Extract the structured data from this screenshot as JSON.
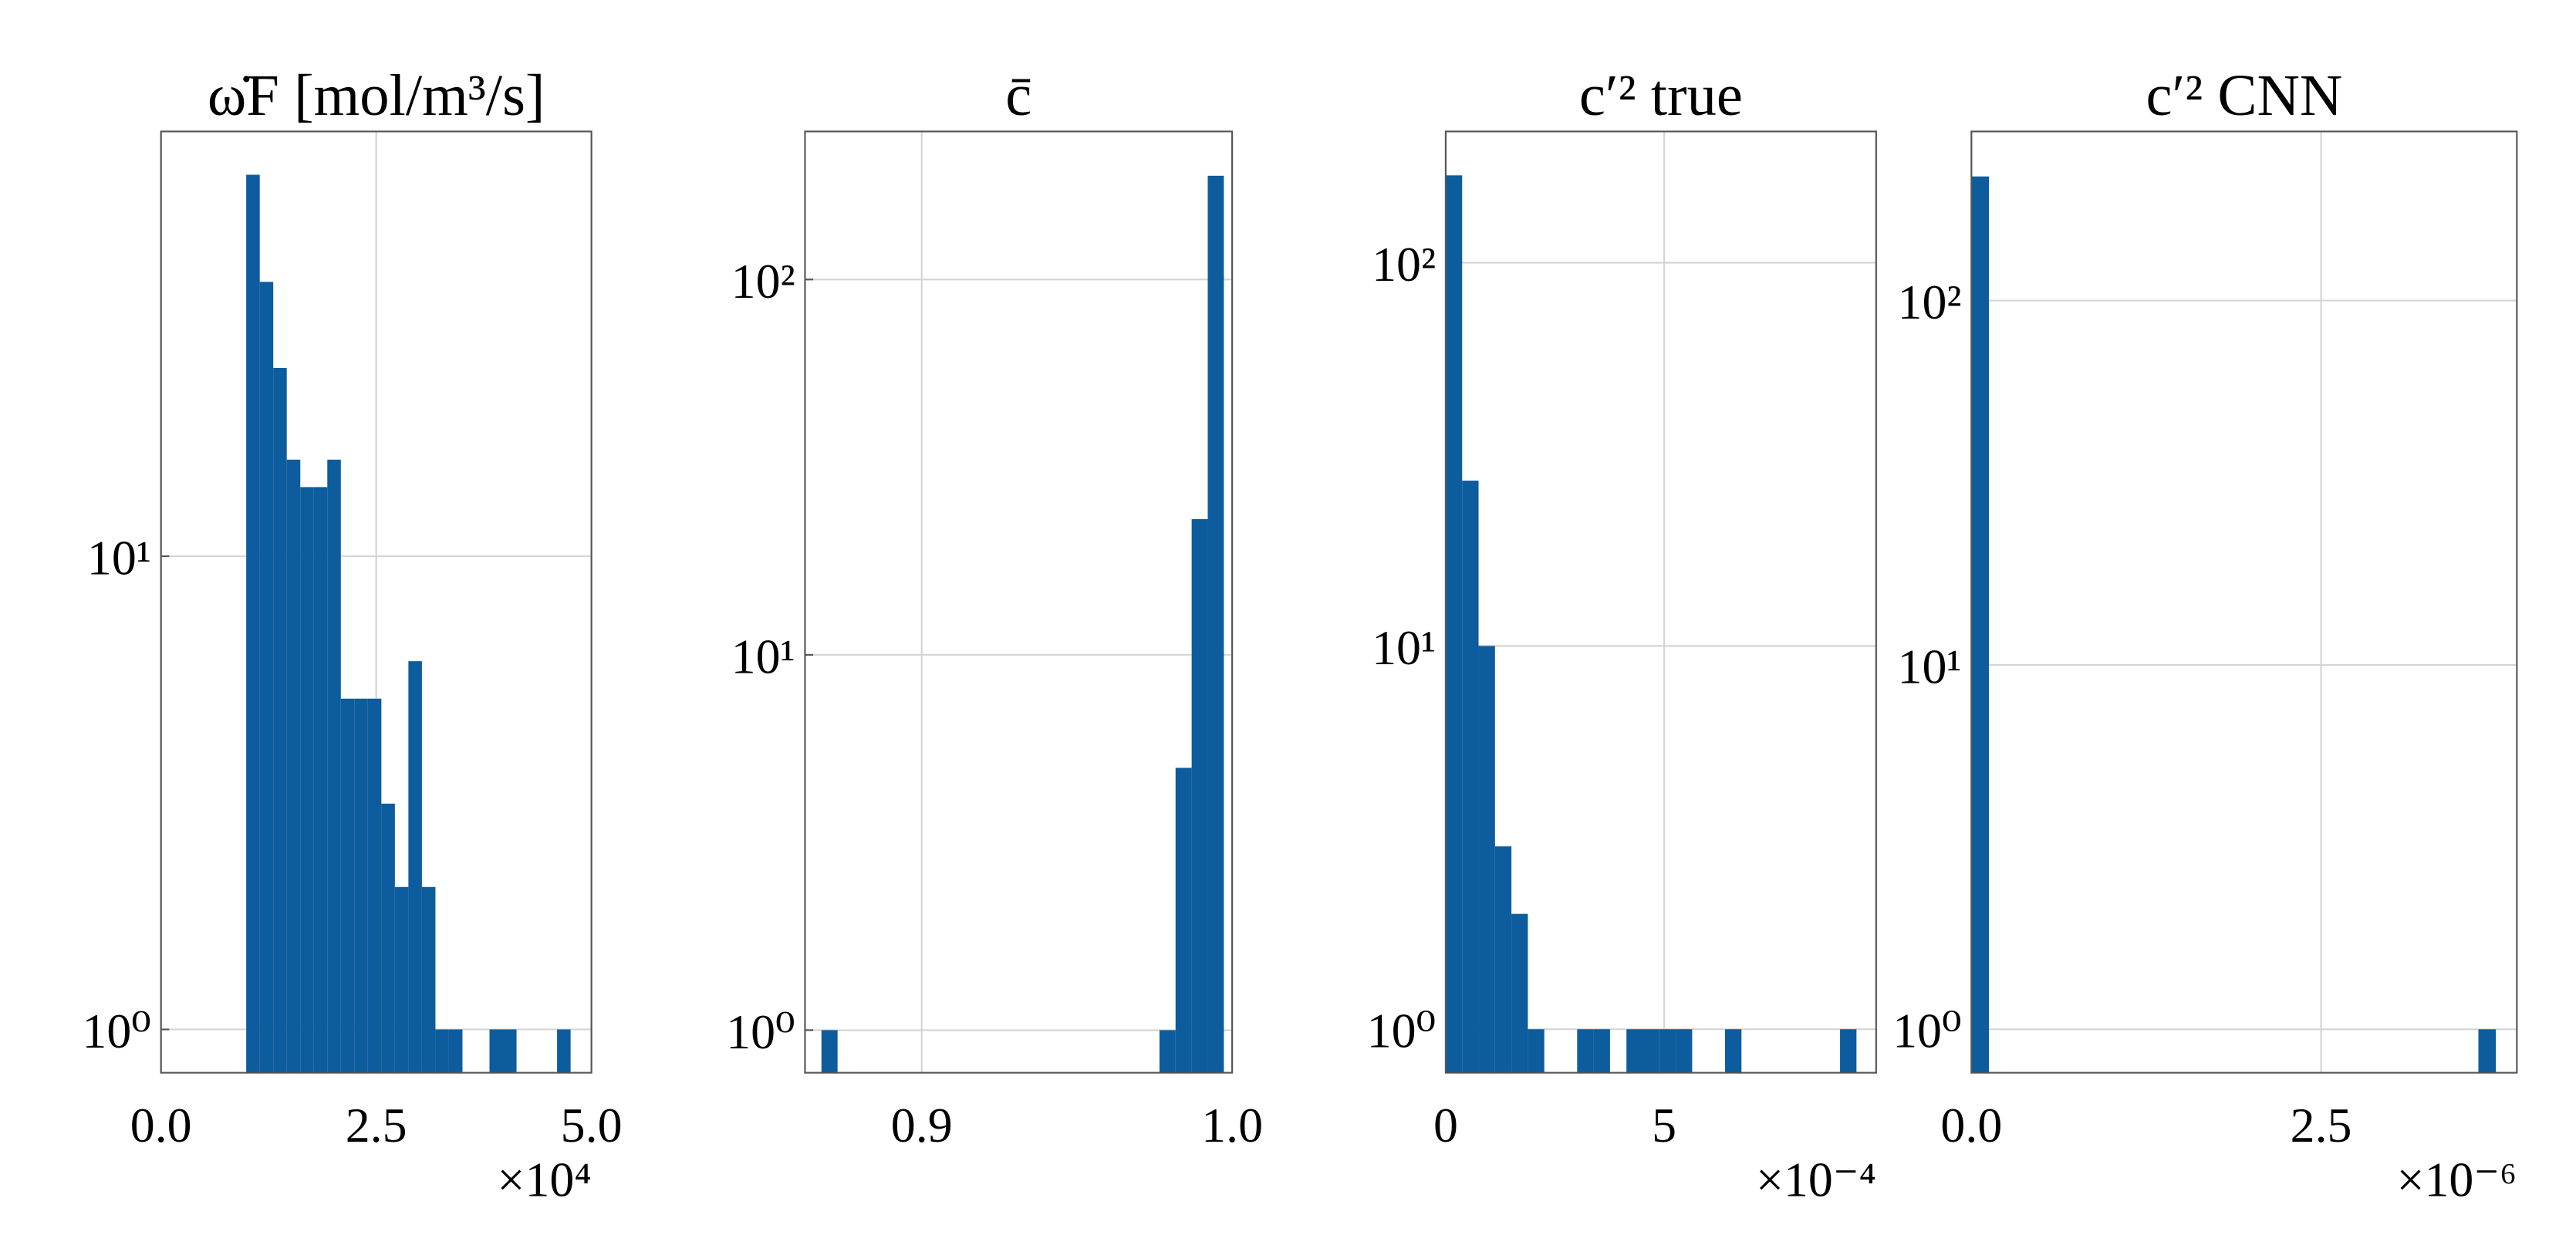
{
  "chart_data": [
    {
      "type": "histogram",
      "title": "ω̇F [mol/m³/s]",
      "offset_text": "×10⁴",
      "color": "#0d5c9e",
      "bins": [
        0.99,
        1.147,
        1.304,
        1.461,
        1.618,
        1.775,
        1.932,
        2.089,
        2.246,
        2.403,
        2.56,
        2.717,
        2.874,
        3.031,
        3.188,
        3.345,
        3.502,
        3.659,
        3.816,
        3.973,
        4.13,
        4.287,
        4.444,
        4.601,
        4.758
      ],
      "values": [
        64,
        38,
        25,
        16,
        14,
        14,
        16,
        5,
        5,
        5,
        3,
        2,
        6,
        2,
        1,
        1,
        0,
        0,
        1,
        1,
        0,
        0,
        0,
        1
      ],
      "xlim": [
        0,
        5
      ],
      "xticks": [
        {
          "value": 0,
          "label": "0.0"
        },
        2.5,
        {
          "value": 5,
          "label": "5.0"
        }
      ],
      "ylim": [
        0.81,
        79
      ],
      "yticks": [
        {
          "value": 1,
          "label": "10⁰"
        },
        {
          "value": 10,
          "label": "10¹"
        }
      ],
      "log_y": true,
      "grid": true
    },
    {
      "type": "histogram",
      "title": "c̄",
      "color": "#0d5c9e",
      "bins": [
        0.8677,
        0.87289,
        0.87807,
        0.88326,
        0.88844,
        0.89363,
        0.89881,
        0.904,
        0.90918,
        0.91437,
        0.91955,
        0.92474,
        0.92992,
        0.93511,
        0.94029,
        0.94548,
        0.95066,
        0.95585,
        0.96103,
        0.96622,
        0.9714,
        0.97659,
        0.98177,
        0.98696,
        0.99214,
        0.99733
      ],
      "values": [
        1,
        0,
        0,
        0,
        0,
        0,
        0,
        0,
        0,
        0,
        0,
        0,
        0,
        0,
        0,
        0,
        0,
        0,
        0,
        0,
        0,
        1,
        5,
        23,
        189
      ],
      "xlim": [
        0.8624,
        1.0
      ],
      "xticks": [
        0.9,
        {
          "value": 1.0,
          "label": "1.0"
        }
      ],
      "ylim": [
        0.77,
        248
      ],
      "yticks": [
        {
          "value": 1,
          "label": "10⁰"
        },
        {
          "value": 10,
          "label": "10¹"
        },
        {
          "value": 100,
          "label": "10²"
        }
      ],
      "log_y": true,
      "grid": true
    },
    {
      "type": "histogram",
      "title": "c′² true",
      "offset_text": "×10⁻⁴",
      "color": "#0d5c9e",
      "bins": [
        0,
        0.376,
        0.752,
        1.128,
        1.504,
        1.88,
        2.256,
        2.632,
        3.008,
        3.384,
        3.76,
        4.136,
        4.512,
        4.888,
        5.264,
        5.64,
        6.016,
        6.392,
        6.768,
        7.144,
        7.52,
        7.896,
        8.272,
        8.648,
        9.024,
        9.4
      ],
      "values": [
        169,
        27,
        10,
        3,
        2,
        1,
        0,
        0,
        1,
        1,
        0,
        1,
        1,
        1,
        1,
        0,
        0,
        1,
        0,
        0,
        0,
        0,
        0,
        0,
        1
      ],
      "xlim": [
        0,
        9.85
      ],
      "xticks": [
        0,
        5
      ],
      "ylim": [
        0.77,
        220
      ],
      "yticks": [
        {
          "value": 1,
          "label": "10⁰"
        },
        {
          "value": 10,
          "label": "10¹"
        },
        {
          "value": 100,
          "label": "10²"
        }
      ],
      "log_y": true,
      "grid": true
    },
    {
      "type": "histogram",
      "title": "c′² CNN",
      "offset_text": "×10⁻⁶",
      "color": "#0d5c9e",
      "bins": [
        0,
        0.125,
        0.25,
        0.375,
        0.5,
        0.625,
        0.75,
        0.875,
        1,
        1.125,
        1.25,
        1.375,
        1.5,
        1.625,
        1.75,
        1.875,
        2,
        2.125,
        2.25,
        2.375,
        2.5,
        2.625,
        2.75,
        2.875,
        3,
        3.125,
        3.25,
        3.375,
        3.5,
        3.625,
        3.75
      ],
      "values": [
        219,
        0,
        0,
        0,
        0,
        0,
        0,
        0,
        0,
        0,
        0,
        0,
        0,
        0,
        0,
        0,
        0,
        0,
        0,
        0,
        0,
        0,
        0,
        0,
        0,
        0,
        0,
        0,
        0,
        1
      ],
      "xlim": [
        0,
        3.9
      ],
      "xticks": [
        {
          "value": 0,
          "label": "0.0"
        },
        2.5
      ],
      "ylim": [
        0.76,
        291
      ],
      "yticks": [
        {
          "value": 1,
          "label": "10⁰"
        },
        {
          "value": 10,
          "label": "10¹"
        },
        {
          "value": 100,
          "label": "10²"
        }
      ],
      "log_y": true,
      "grid": true
    }
  ]
}
